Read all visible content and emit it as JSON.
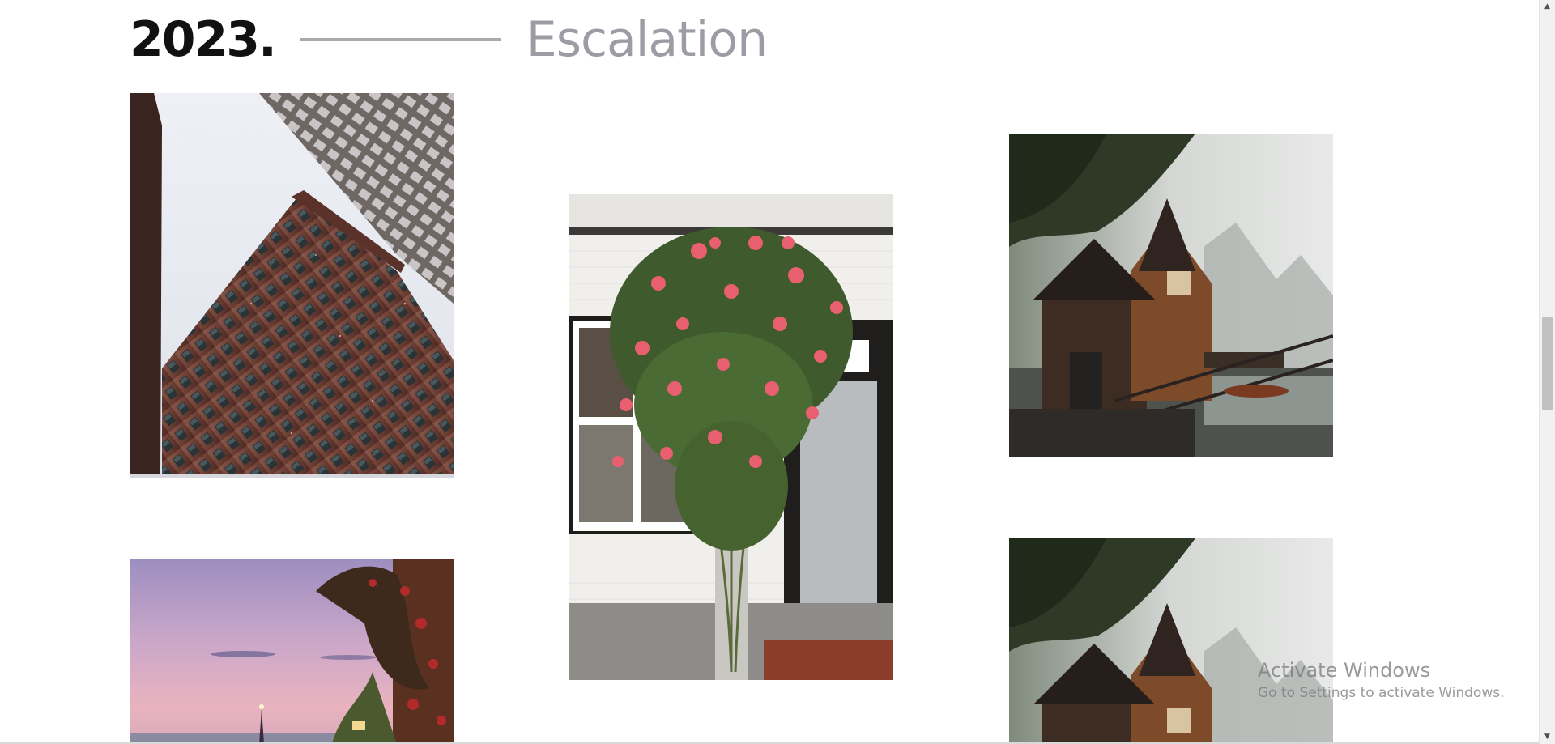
{
  "section": {
    "year": "2023.",
    "title": "Escalation"
  },
  "gallery": {
    "photos": [
      {
        "name": "snowy-building-photo",
        "subject": "brick high-rise buildings in snowfall, viewed from below"
      },
      {
        "name": "rose-bush-door-photo",
        "subject": "pink rose bush beside a grey door and white window"
      },
      {
        "name": "lake-boathouse-photo",
        "subject": "wooden boathouse on a misty mountain lake"
      },
      {
        "name": "pink-sunset-photo",
        "subject": "pink sunset sky with spire and flowering balcony"
      },
      {
        "name": "lake-boathouse-photo-repeat",
        "subject": "wooden boathouse on a misty mountain lake"
      }
    ]
  },
  "watermark": {
    "line1": "Activate Windows",
    "line2": "Go to Settings to activate Windows."
  },
  "scrollbar": {
    "up_arrow": "▲",
    "down_arrow": "▼"
  },
  "colors": {
    "year": "#111111",
    "title": "#9d9ba3",
    "divider": "#a9a8ad"
  }
}
